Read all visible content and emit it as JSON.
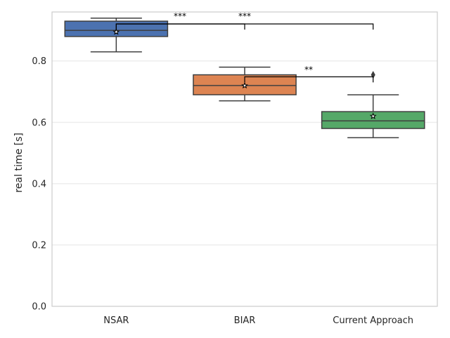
{
  "chart_data": {
    "type": "box",
    "title": "",
    "xlabel": "",
    "ylabel": "real time [s]",
    "ylim": [
      0.0,
      0.96
    ],
    "yticks": [
      0.0,
      0.2,
      0.4,
      0.6,
      0.8
    ],
    "ytick_labels": [
      "0.0",
      "0.2",
      "0.4",
      "0.6",
      "0.8"
    ],
    "grid": "horizontal",
    "categories": [
      "NSAR",
      "BIAR",
      "Current Approach"
    ],
    "series": [
      {
        "category": "NSAR",
        "whisker_low": 0.83,
        "q1": 0.88,
        "median": 0.9,
        "q3": 0.93,
        "whisker_high": 0.94,
        "mean": 0.895,
        "outliers": [],
        "color": "#4c72b0"
      },
      {
        "category": "BIAR",
        "whisker_low": 0.67,
        "q1": 0.69,
        "median": 0.72,
        "q3": 0.755,
        "whisker_high": 0.78,
        "mean": 0.72,
        "outliers": [],
        "color": "#dd8452"
      },
      {
        "category": "Current Approach",
        "whisker_low": 0.55,
        "q1": 0.58,
        "median": 0.605,
        "q3": 0.635,
        "whisker_high": 0.69,
        "mean": 0.62,
        "outliers": [
          0.755
        ],
        "color": "#55a868"
      }
    ],
    "significance": [
      {
        "from": "NSAR",
        "to": "BIAR",
        "label": "***"
      },
      {
        "from": "NSAR",
        "to": "Current Approach",
        "label": "***"
      },
      {
        "from": "BIAR",
        "to": "Current Approach",
        "label": "**"
      }
    ]
  }
}
